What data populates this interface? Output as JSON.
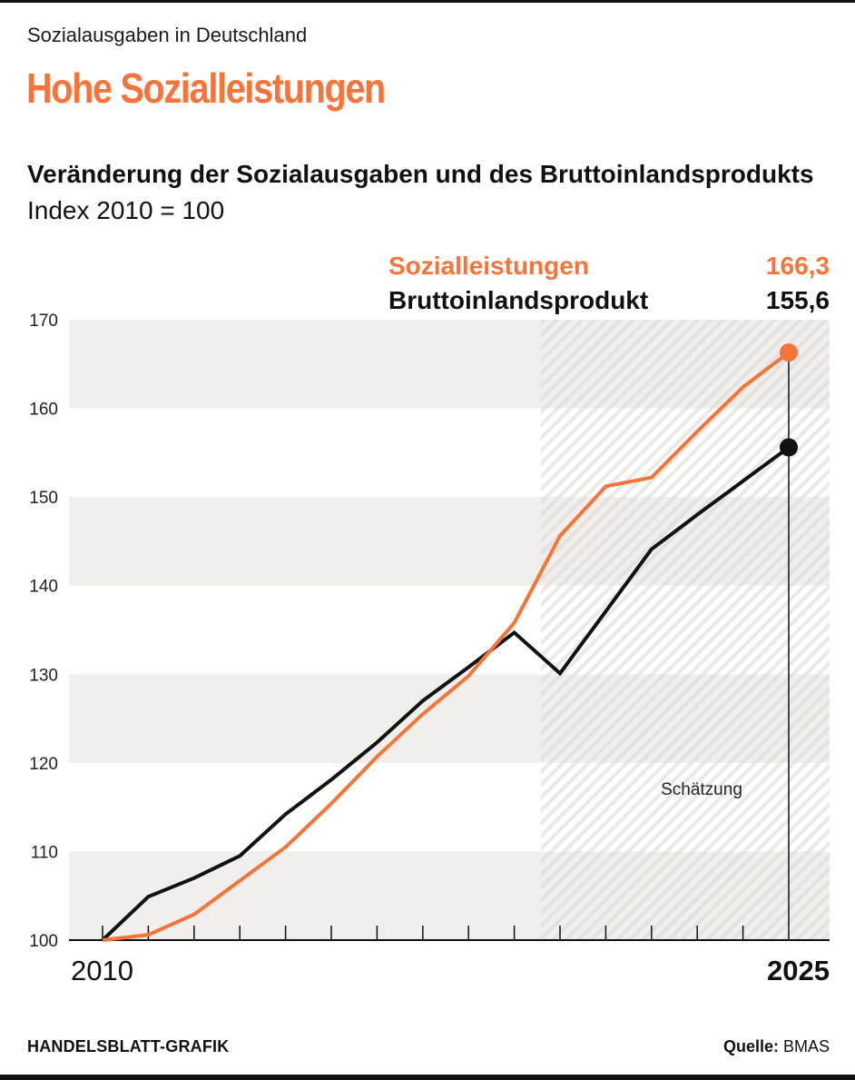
{
  "header": {
    "kicker": "Sozialausgaben in Deutschland",
    "headline": "Hohe Sozialleistungen",
    "subtitle_bold": "Veränderung der Sozialausgaben und des Bruttoinlandsprodukts",
    "subtitle_unit": "Index 2010 = 100"
  },
  "legend": [
    {
      "label": "Sozialleistungen",
      "value": "166,3",
      "color": "#f5743a"
    },
    {
      "label": "Bruttoinlandsprodukt",
      "value": "155,6",
      "color": "#111111"
    }
  ],
  "footer": {
    "credit": "HANDELSBLATT-GRAFIK",
    "source_label": "Quelle:",
    "source_value": "BMAS"
  },
  "chart_data": {
    "type": "line",
    "title": "Veränderung der Sozialausgaben und des Bruttoinlandsprodukts",
    "subtitle": "Index 2010 = 100",
    "x": [
      2010,
      2011,
      2012,
      2013,
      2014,
      2015,
      2016,
      2017,
      2018,
      2019,
      2020,
      2021,
      2022,
      2023,
      2024,
      2025
    ],
    "x_tick_labels": [
      {
        "x": 2010,
        "label": "2010"
      },
      {
        "x": 2025,
        "label": "2025"
      }
    ],
    "ylim": [
      100,
      170
    ],
    "yticks": [
      100,
      110,
      120,
      130,
      140,
      150,
      160,
      170
    ],
    "xlabel": "",
    "ylabel": "",
    "grid": "alternating horizontal bands",
    "shaded_region": {
      "from": 2019.5,
      "to": 2025.9,
      "label": "Schätzung",
      "style": "hatched"
    },
    "series": [
      {
        "name": "Sozialleistungen",
        "color": "#f5743a",
        "values": [
          100,
          100.6,
          102.9,
          106.7,
          110.5,
          115.4,
          120.7,
          125.5,
          129.8,
          135.8,
          145.6,
          151.2,
          152.2,
          157.4,
          162.4,
          166.3
        ],
        "end_label": "166,3"
      },
      {
        "name": "Bruttoinlandsprodukt",
        "color": "#111111",
        "values": [
          100,
          104.9,
          107.0,
          109.5,
          114.2,
          118.1,
          122.3,
          127.0,
          130.8,
          134.7,
          130.1,
          137.1,
          144.1,
          148.0,
          151.8,
          155.6
        ],
        "end_label": "155,6"
      }
    ],
    "annotations": [
      {
        "text": "Schätzung",
        "position": "bottom-right inside shaded region"
      }
    ],
    "legend_position": "top-right"
  }
}
